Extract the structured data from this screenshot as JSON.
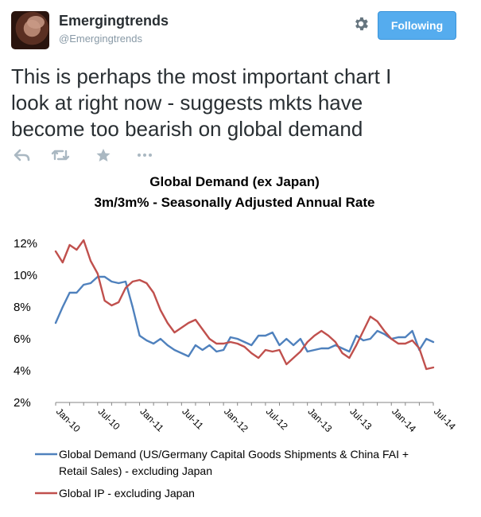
{
  "user": {
    "display_name": "Emergingtrends",
    "username": "@Emergingtrends"
  },
  "follow_button": {
    "label": "Following",
    "color": "#55acee"
  },
  "tweet": {
    "lines": [
      "This is perhaps the most important chart I",
      "look at right now - suggests mkts have",
      "become too bearish on global demand"
    ]
  },
  "actions": [
    "reply-icon",
    "retweet-icon",
    "favorite-icon",
    "more-icon"
  ],
  "chart_data": {
    "type": "line",
    "title": "Global Demand (ex Japan)",
    "subtitle": "3m/3m% - Seasonally Adjusted Annual Rate",
    "ylim": [
      2,
      12
    ],
    "yticks": [
      "2%",
      "4%",
      "6%",
      "8%",
      "10%",
      "12%"
    ],
    "ytick_values": [
      2,
      4,
      6,
      8,
      10,
      12
    ],
    "xlabels": [
      "Jan-10",
      "Jul-10",
      "Jan-11",
      "Jul-11",
      "Jan-12",
      "Jul-12",
      "Jan-13",
      "Jul-13",
      "Jan-14",
      "Jul-14"
    ],
    "x_points": 55,
    "grid": false,
    "legend_placement": "bottom",
    "series": [
      {
        "name": "Global Demand (US/Germany Capital Goods Shipments & China FAI + Retail Sales) - excluding Japan",
        "legend_lines": [
          "Global Demand (US/Germany Capital Goods Shipments & China FAI +",
          "Retail Sales) - excluding Japan"
        ],
        "color": "#4f81bd",
        "values": [
          7.0,
          8.0,
          8.9,
          8.9,
          9.4,
          9.5,
          9.9,
          9.9,
          9.6,
          9.5,
          9.6,
          8.0,
          6.2,
          5.9,
          5.7,
          6.0,
          5.6,
          5.3,
          5.1,
          4.9,
          5.6,
          5.3,
          5.6,
          5.2,
          5.3,
          6.1,
          6.0,
          5.8,
          5.6,
          6.2,
          6.2,
          6.4,
          5.6,
          6.0,
          5.6,
          6.0,
          5.2,
          5.3,
          5.4,
          5.4,
          5.6,
          5.4,
          5.2,
          6.2,
          5.9,
          6.0,
          6.5,
          6.3,
          6.0,
          6.1,
          6.1,
          6.5,
          5.3,
          6.0,
          5.8
        ]
      },
      {
        "name": "Global IP - excluding Japan",
        "legend_lines": [
          "Global IP - excluding Japan"
        ],
        "color": "#c0504d",
        "values": [
          11.5,
          10.8,
          11.9,
          11.6,
          12.2,
          10.9,
          10.1,
          8.4,
          8.1,
          8.3,
          9.2,
          9.6,
          9.7,
          9.5,
          8.9,
          7.8,
          7.0,
          6.4,
          6.7,
          7.0,
          7.2,
          6.6,
          6.0,
          5.7,
          5.7,
          5.8,
          5.7,
          5.5,
          5.1,
          4.8,
          5.3,
          5.2,
          5.3,
          4.4,
          4.8,
          5.2,
          5.8,
          6.2,
          6.5,
          6.2,
          5.8,
          5.1,
          4.8,
          5.6,
          6.5,
          7.4,
          7.1,
          6.5,
          6.0,
          5.7,
          5.7,
          5.9,
          5.4,
          4.1,
          4.2
        ]
      }
    ]
  }
}
